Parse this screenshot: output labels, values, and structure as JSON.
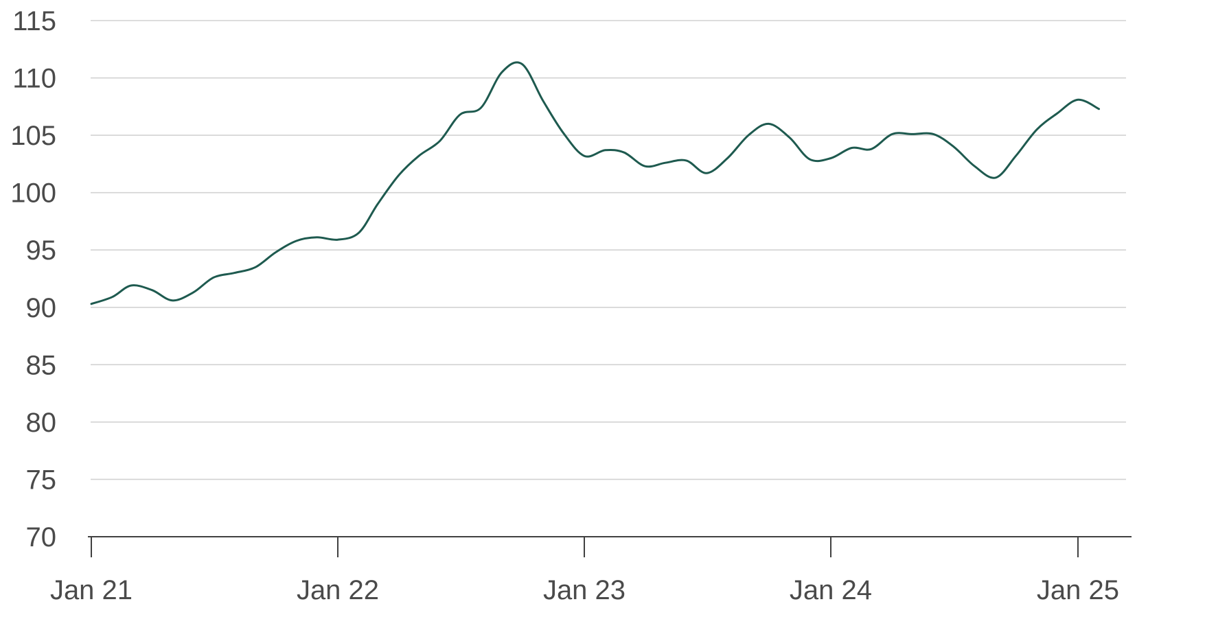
{
  "chart_data": {
    "type": "line",
    "title": "",
    "xlabel": "",
    "ylabel": "",
    "ylim": [
      70,
      115
    ],
    "y_ticks": [
      70,
      75,
      80,
      85,
      90,
      95,
      100,
      105,
      110,
      115
    ],
    "y_tick_labels": [
      "70",
      "75",
      "80",
      "85",
      "90",
      "95",
      "100",
      "105",
      "110",
      "115"
    ],
    "x_range": [
      "2021-01-01",
      "2025-03-01"
    ],
    "x_ticks": [
      "2021-01-01",
      "2022-01-01",
      "2023-01-01",
      "2024-01-01",
      "2025-01-01"
    ],
    "x_tick_labels": [
      "Jan 21",
      "Jan 22",
      "Jan 23",
      "Jan 24",
      "Jan 25"
    ],
    "grid": "horizontal",
    "legend": "none",
    "line_color": "#1e5a4f",
    "series": [
      {
        "x": [
          "2021-01-01",
          "2021-02-01",
          "2021-03-01",
          "2021-04-01",
          "2021-05-01",
          "2021-06-01",
          "2021-07-01",
          "2021-08-01",
          "2021-09-01",
          "2021-10-01",
          "2021-11-01",
          "2021-12-01",
          "2022-01-01",
          "2022-02-01",
          "2022-03-01",
          "2022-04-01",
          "2022-05-01",
          "2022-06-01",
          "2022-07-01",
          "2022-08-01",
          "2022-09-01",
          "2022-10-01",
          "2022-11-01",
          "2022-12-01",
          "2023-01-01",
          "2023-02-01",
          "2023-03-01",
          "2023-04-01",
          "2023-05-01",
          "2023-06-01",
          "2023-07-01",
          "2023-08-01",
          "2023-09-01",
          "2023-10-01",
          "2023-11-01",
          "2023-12-01",
          "2024-01-01",
          "2024-02-01",
          "2024-03-01",
          "2024-04-01",
          "2024-05-01",
          "2024-06-01",
          "2024-07-01",
          "2024-08-01",
          "2024-09-01",
          "2024-10-01",
          "2024-11-01",
          "2024-12-01",
          "2025-01-01",
          "2025-02-01"
        ],
        "values": [
          90.3,
          90.9,
          91.9,
          91.5,
          90.6,
          91.3,
          92.6,
          93.0,
          93.5,
          94.8,
          95.8,
          96.1,
          95.9,
          96.5,
          99.0,
          101.5,
          103.2,
          104.5,
          106.8,
          107.4,
          110.5,
          111.2,
          108.0,
          105.2,
          103.2,
          103.7,
          103.5,
          102.3,
          102.6,
          102.8,
          101.7,
          103.0,
          105.0,
          106.0,
          104.8,
          102.9,
          103.0,
          103.9,
          103.8,
          105.1,
          105.1,
          105.1,
          104.0,
          102.3,
          101.3,
          103.2,
          105.5,
          106.9,
          108.1,
          107.3
        ]
      }
    ]
  }
}
